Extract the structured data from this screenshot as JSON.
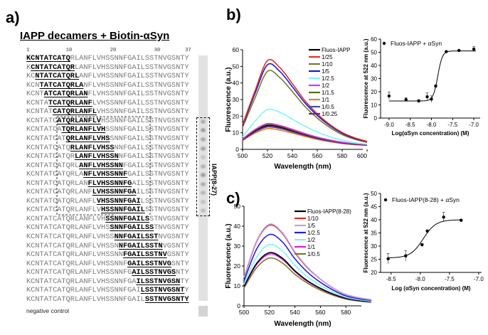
{
  "panels": {
    "a": "a)",
    "b": "b)",
    "c": "c)"
  },
  "panel_a": {
    "title": "IAPP decamers + Biotin-αSyn",
    "position_numbers": [
      "1",
      "10",
      "20",
      "30",
      "37"
    ],
    "rows": [
      {
        "pre": "",
        "bold": "KCNTATCATQ",
        "post": "RLANFLVHSSNNFGAILSSTNVGSNTY"
      },
      {
        "pre": "K",
        "bold": "CNTATCATQR",
        "post": "LANFLVHSSNNFGAILSSTNVGSNTY"
      },
      {
        "pre": "KC",
        "bold": "NTATCATQRL",
        "post": "ANFLVHSSNNFGAILSSTNVGSNTY"
      },
      {
        "pre": "KCN",
        "bold": "TATCATQRLA",
        "post": "NFLVHSSNNFGAILSSTNVGSNTY"
      },
      {
        "pre": "KCNT",
        "bold": "ATCATQRLAN",
        "post": "FLVHSSNNFGAILSSTNVGSNTY"
      },
      {
        "pre": "KCNTA",
        "bold": "TCATQRLANF",
        "post": "LVHSSNNFGAILSSTNVGSNTY"
      },
      {
        "pre": "KCNTAT",
        "bold": "CATQRLANFL",
        "post": "VHSSNNFGAILSSTNVGSNTY"
      },
      {
        "pre": "KCNTATC",
        "bold": "ATQRLANFLV",
        "post": "HSSNNFGAILSSTNVGSNTY"
      },
      {
        "pre": "KCNTATCA",
        "bold": "TQRLANFLVH",
        "post": "SSNNFGAILSSTNVGSNTY"
      },
      {
        "pre": "KCNTATCAT",
        "bold": "QRLANFLVHS",
        "post": "SNNFGAILSSTNVGSNTY"
      },
      {
        "pre": "KCNTATCATQ",
        "bold": "RLANFLVHSS",
        "post": "NNFGAILSSTNVGSNTY"
      },
      {
        "pre": "KCNTATCATQR",
        "bold": "LANFLVHSSN",
        "post": "NFGAILSSTNVGSNTY"
      },
      {
        "pre": "KCNTATCATQRL",
        "bold": "ANFLVHSSNN",
        "post": "FGAILSSTNVGSNTY"
      },
      {
        "pre": "KCNTATCATQRLA",
        "bold": "NFLVHSSNNF",
        "post": "GAILSSTNVGSNTY"
      },
      {
        "pre": "KCNTATCATQRLAN",
        "bold": "FLVHSSNNFG",
        "post": "AILSSTNVGSNTY"
      },
      {
        "pre": "KCNTATCATQRLANF",
        "bold": "LVHSSNNFGA",
        "post": "ILSSTNVGSNTY"
      },
      {
        "pre": "KCNTATCATQRLANFL",
        "bold": "VHSSNNFGAI",
        "post": "LSSTNVGSNTY"
      },
      {
        "pre": "KCNTATCATQRLANFLV",
        "bold": "HSSNNFGAIL",
        "post": "SSTNVGSNTY"
      },
      {
        "pre": "KCNTATCATQRLANFLVH",
        "bold": "SSNNFGAILS",
        "post": "STNVGSNTY"
      },
      {
        "pre": "KCNTATCATQRLANFLVHS",
        "bold": "SNNFGAILSS",
        "post": "TNVGSNTY"
      },
      {
        "pre": "KCNTATCATQRLANFLVHSS",
        "bold": "NNFGAILSST",
        "post": "NVGSNTY"
      },
      {
        "pre": "KCNTATCATQRLANFLVHSSN",
        "bold": "NFGAILSSTN",
        "post": "VGSNTY"
      },
      {
        "pre": "KCNTATCATQRLANFLVHSSNN",
        "bold": "FGAILSSTNV",
        "post": "GSNTY"
      },
      {
        "pre": "KCNTATCATQRLANFLVHSSNNF",
        "bold": "GAILSSTNVG",
        "post": "SNTY"
      },
      {
        "pre": "KCNTATCATQRLANFLVHSSNNFG",
        "bold": "AILSSTNVGS",
        "post": "NTY"
      },
      {
        "pre": "KCNTATCATQRLANFLVHSSNNFGA",
        "bold": "ILSSTNVGSN",
        "post": "TY"
      },
      {
        "pre": "KCNTATCATQRLANFLVHSSNNFGAI",
        "bold": "LSSTNVGSNT",
        "post": "Y"
      },
      {
        "pre": "KCNTATCATQRLANFLVHSSNNFGAIL",
        "bold": "SSTNVGSNTY",
        "post": ""
      }
    ],
    "blot_spot_intensity": [
      0,
      0,
      0,
      0,
      0,
      0,
      0,
      0.55,
      0.7,
      0.6,
      0.65,
      0.3,
      0.5,
      0.7,
      0.55,
      0.45,
      0.35,
      0.4,
      0,
      0,
      0,
      0,
      0,
      0,
      0,
      0,
      0,
      0
    ],
    "box_label": "IAPP(8-27)",
    "negative_control": "negative control"
  },
  "chart_data": [
    {
      "id": "b-spectra",
      "type": "line",
      "xlabel": "Wavelength (nm)",
      "ylabel": "Fluorescence (a.u.)",
      "xlim": [
        500,
        600
      ],
      "ylim": [
        0,
        60
      ],
      "xticks": [
        "500",
        "520",
        "540",
        "560",
        "580",
        "600"
      ],
      "yticks": [
        "0",
        "10",
        "20",
        "30",
        "40",
        "50",
        "60"
      ],
      "legend_position": "top-right",
      "x": [
        500,
        510,
        520,
        530,
        540,
        550,
        560,
        570,
        580,
        590,
        600
      ],
      "series": [
        {
          "name": "Fluos-IAPP",
          "color": "#000000",
          "values": [
            6.1,
            11.3,
            14.5,
            13.5,
            11.3,
            9,
            7,
            5.4,
            4.1,
            3.2,
            2.8
          ]
        },
        {
          "name": "1/25",
          "color": "#e03020",
          "values": [
            15,
            35.3,
            53.5,
            49.2,
            39.6,
            29.4,
            21.4,
            15,
            10.2,
            7,
            4.8
          ]
        },
        {
          "name": "1/10",
          "color": "#7a7a2a",
          "values": [
            13.2,
            31,
            47,
            43.2,
            34.8,
            25.9,
            18.8,
            13.2,
            8.9,
            6.1,
            4.2
          ]
        },
        {
          "name": "1/5",
          "color": "#1a1ae0",
          "values": [
            14.3,
            33.7,
            51,
            46.9,
            37.7,
            28.1,
            20.4,
            14.3,
            9.7,
            6.6,
            4.6
          ]
        },
        {
          "name": "1/2.5",
          "color": "#7ff5f5",
          "values": [
            7.5,
            17,
            24,
            22.3,
            18.2,
            14,
            10.5,
            7.6,
            5.5,
            4,
            3.2
          ]
        },
        {
          "name": "1/2",
          "color": "#e030e8",
          "values": [
            6.3,
            12,
            15.5,
            14.4,
            12.1,
            9.6,
            7.4,
            5.7,
            4.3,
            3.4,
            3
          ]
        },
        {
          "name": "1/1.5",
          "color": "#5f6b10",
          "values": [
            6.2,
            11.7,
            15,
            14,
            11.7,
            9.3,
            7.2,
            5.5,
            4.2,
            3.3,
            2.9
          ]
        },
        {
          "name": "1/1",
          "color": "#e08030",
          "values": [
            5.3,
            9.8,
            12.5,
            11.6,
            9.8,
            7.8,
            6,
            4.6,
            3.5,
            2.8,
            2.5
          ]
        },
        {
          "name": "1/0.5",
          "color": "#4a4a9a",
          "values": [
            6,
            10.9,
            14,
            13,
            10.9,
            8.7,
            6.7,
            5.2,
            3.9,
            3.1,
            2.7
          ]
        },
        {
          "name": "1/0.25",
          "color": "#6a2a80",
          "values": [
            5.7,
            10.5,
            13.5,
            12.6,
            10.5,
            8.4,
            6.5,
            5,
            3.8,
            3,
            2.6
          ]
        }
      ]
    },
    {
      "id": "b-binding",
      "type": "scatter",
      "xlabel": "Log(αSyn concentration) (M)",
      "ylabel": "Fluorescence at 522 nm (a.u.)",
      "xlim": [
        -9.2,
        -6.85
      ],
      "ylim": [
        0,
        60
      ],
      "xticks": [
        "-9.0",
        "-8.5",
        "-8.0",
        "-7.5",
        "-7.0"
      ],
      "yticks": [
        "0",
        "10",
        "20",
        "30",
        "40",
        "50",
        "60"
      ],
      "legend_position": "top-left",
      "series": [
        {
          "name": "Fluos-IAPP + αSyn",
          "color": "#000000",
          "x": [
            -9.0,
            -8.6,
            -8.3,
            -8.1,
            -8.0,
            -7.9,
            -7.65,
            -7.35,
            -7.0
          ],
          "y": [
            16.8,
            14,
            13,
            16.2,
            14.4,
            24.3,
            50.5,
            51.4,
            52.4
          ],
          "error": [
            3,
            1.5,
            1,
            3,
            2.5,
            1,
            0.5,
            0.5,
            2
          ]
        }
      ],
      "fit": {
        "bottom": 13,
        "top": 51,
        "logEC50": -7.85,
        "hill": 8,
        "x_range": [
          -9.0,
          -6.95
        ]
      }
    },
    {
      "id": "c-spectra",
      "type": "line",
      "xlabel": "Wavelength (nm)",
      "ylabel": "Fluorescence (a.u.)",
      "xlim": [
        500,
        600
      ],
      "ylim": [
        0,
        50
      ],
      "xticks": [
        "500",
        "520",
        "540",
        "560",
        "580"
      ],
      "yticks": [
        "0",
        "10",
        "20",
        "30",
        "40",
        "50"
      ],
      "legend_position": "top-right",
      "x": [
        500,
        510,
        520,
        530,
        540,
        550,
        560,
        570,
        580,
        590,
        600
      ],
      "series": [
        {
          "name": "Fluos-IAPP(8-28)",
          "color": "#000000",
          "values": [
            9.8,
            21.4,
            26.7,
            24,
            17.6,
            12.5,
            8.8,
            5.9,
            3.8,
            2.7,
            2.1
          ]
        },
        {
          "name": "1/10",
          "color": "#d83020",
          "values": [
            14,
            32.4,
            40.5,
            36.5,
            26.7,
            19,
            13.4,
            8.9,
            5.7,
            4.1,
            3
          ]
        },
        {
          "name": "1/5",
          "color": "#c0a0e8",
          "values": [
            14.4,
            32.8,
            41,
            36.9,
            27.1,
            19.3,
            13.5,
            9,
            5.7,
            4.1,
            3.1
          ]
        },
        {
          "name": "1/2.5",
          "color": "#2020d8",
          "values": [
            12.5,
            28.6,
            35.8,
            32.2,
            23.6,
            16.8,
            11.8,
            7.9,
            5,
            3.6,
            2.7
          ]
        },
        {
          "name": "1/2",
          "color": "#80f0f0",
          "values": [
            10.8,
            24.6,
            30.8,
            27.7,
            20.3,
            14.5,
            10.2,
            6.8,
            4.3,
            3.1,
            2.3
          ]
        },
        {
          "name": "1/1",
          "color": "#d820d8",
          "values": [
            9.6,
            20.8,
            26,
            23.4,
            17.2,
            12.2,
            8.6,
            5.7,
            3.7,
            2.6,
            2
          ]
        },
        {
          "name": "1/0.5",
          "color": "#7a7a2a",
          "values": [
            9,
            19.2,
            24,
            21.6,
            15.8,
            11.3,
            7.9,
            5.3,
            3.4,
            2.4,
            1.8
          ]
        }
      ]
    },
    {
      "id": "c-binding",
      "type": "scatter",
      "xlabel": "Log (αSyn concentration) (M)",
      "ylabel": "Fluorescence at 522 nm (a.u.)",
      "xlim": [
        -8.68,
        -6.95
      ],
      "ylim": [
        20,
        50
      ],
      "xticks": [
        "-8.5",
        "-8.0",
        "-7.5",
        "-7.0"
      ],
      "yticks": [
        "20",
        "25",
        "30",
        "35",
        "40",
        "45",
        "50"
      ],
      "legend_position": "top-left",
      "series": [
        {
          "name": "Fluos-IAPP(8-28) + αSyn",
          "color": "#000000",
          "x": [
            -8.55,
            -8.25,
            -7.97,
            -7.88,
            -7.6,
            -7.3
          ],
          "y": [
            25.2,
            26.3,
            30.5,
            35.7,
            41,
            39.8
          ],
          "error": [
            2,
            2,
            0.5,
            0.5,
            1.8,
            0.3
          ]
        }
      ],
      "fit": {
        "bottom": 25.5,
        "top": 40,
        "logEC50": -7.95,
        "hill": 4,
        "x_range": [
          -8.55,
          -7.3
        ]
      }
    }
  ]
}
